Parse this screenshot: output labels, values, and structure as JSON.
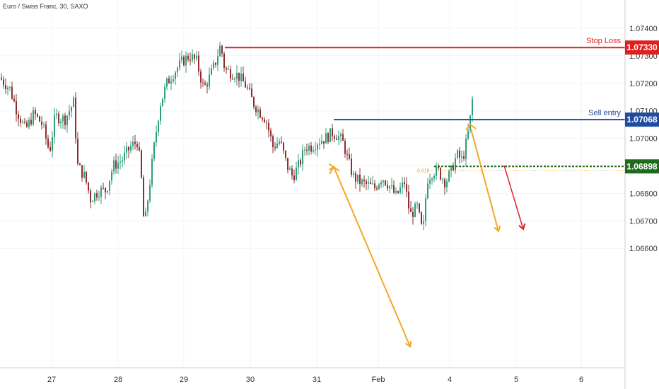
{
  "chart_data": {
    "type": "candlestick",
    "title": "Euro / Swiss Franc, 30, SAXO",
    "y_ticks": [
      "1.07400",
      "1.07300",
      "1.07200",
      "1.07100",
      "1.07000",
      "1.06900",
      "1.06800",
      "1.06700",
      "1.06600"
    ],
    "x_ticks": [
      "27",
      "28",
      "29",
      "30",
      "31",
      "Feb",
      "4",
      "5",
      "6"
    ],
    "ylim": [
      1.0655,
      1.0746
    ],
    "levels": [
      {
        "name": "Stop Loss",
        "value": 1.0733,
        "badge": "1.07330",
        "color": "#e02020"
      },
      {
        "name": "Sell entry",
        "value": 1.07068,
        "badge": "1.07068",
        "color": "#1f4ba0"
      },
      {
        "name": "",
        "value": 1.06898,
        "badge": "1.06898",
        "color": "#1e6b1e"
      }
    ],
    "fib_label": "0.618",
    "up_color": "#2e9e7a",
    "down_color": "#8b2f2f"
  }
}
